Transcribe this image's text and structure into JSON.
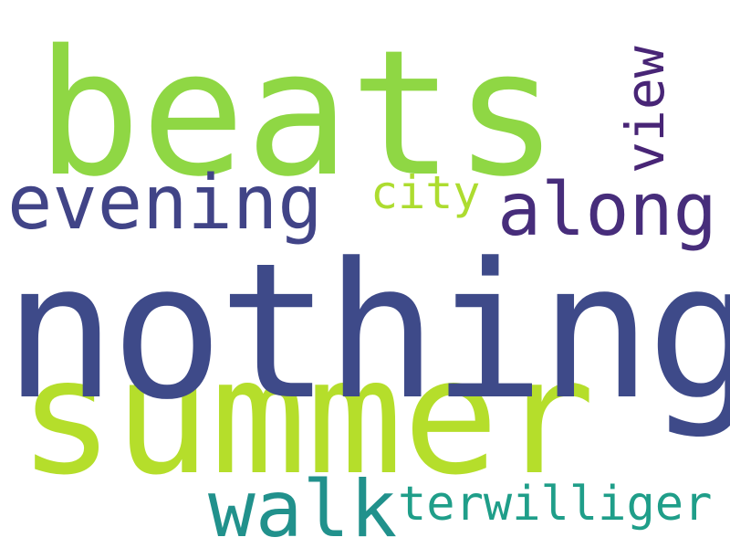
{
  "words": {
    "beats": {
      "text": "beats",
      "color": "#8fd744"
    },
    "nothing": {
      "text": "nothing",
      "color": "#3e4a89"
    },
    "summer": {
      "text": "summer",
      "color": "#b5de2b"
    },
    "evening": {
      "text": "evening",
      "color": "#414487"
    },
    "along": {
      "text": "along",
      "color": "#472d7b"
    },
    "city": {
      "text": "city",
      "color": "#addc30"
    },
    "view": {
      "text": "view",
      "color": "#482576"
    },
    "walk": {
      "text": "walk",
      "color": "#21918c"
    },
    "terwilliger": {
      "text": "terwilliger",
      "color": "#1f9e89"
    }
  }
}
